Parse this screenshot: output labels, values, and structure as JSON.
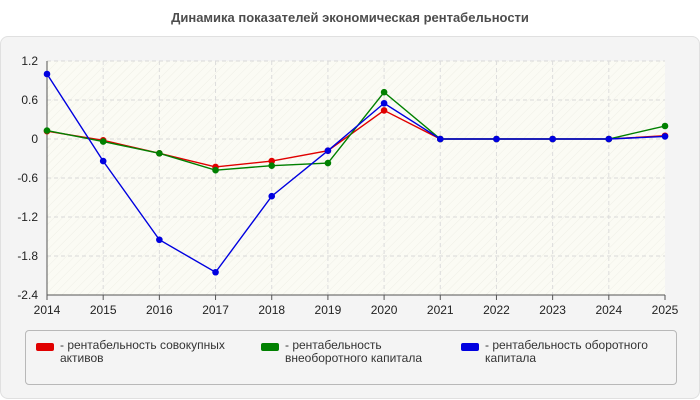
{
  "page": {
    "title": "Динамика показателей экономическая рентабельности"
  },
  "chart_data": {
    "type": "line",
    "title": "Динамика показателей экономическая рентабельности",
    "xlabel": "",
    "ylabel": "",
    "x": [
      "2014",
      "2015",
      "2016",
      "2017",
      "2018",
      "2019",
      "2020",
      "2021",
      "2022",
      "2023",
      "2024",
      "2025"
    ],
    "ylim": [
      -2.4,
      1.2
    ],
    "yticks": [
      "1.2",
      "0.6",
      "0",
      "-0.6",
      "-1.2",
      "-1.8",
      "-2.4"
    ],
    "grid": true,
    "legend_position": "bottom",
    "series": [
      {
        "name": "- рентабельность совокупных активов",
        "color": "#e00000",
        "values": [
          0.12,
          -0.02,
          -0.22,
          -0.43,
          -0.34,
          -0.18,
          0.44,
          0.0,
          0.0,
          0.0,
          0.0,
          0.05
        ]
      },
      {
        "name": "- рентабельность внеоборотного капитала",
        "color": "#008000",
        "values": [
          0.13,
          -0.04,
          -0.22,
          -0.48,
          -0.41,
          -0.37,
          0.72,
          0.0,
          0.0,
          0.0,
          0.0,
          0.2
        ]
      },
      {
        "name": "- рентабельность оборотного капитала",
        "color": "#0000e0",
        "values": [
          1.0,
          -0.34,
          -1.55,
          -2.05,
          -0.88,
          -0.18,
          0.55,
          0.0,
          0.0,
          0.0,
          0.0,
          0.04
        ]
      }
    ]
  }
}
